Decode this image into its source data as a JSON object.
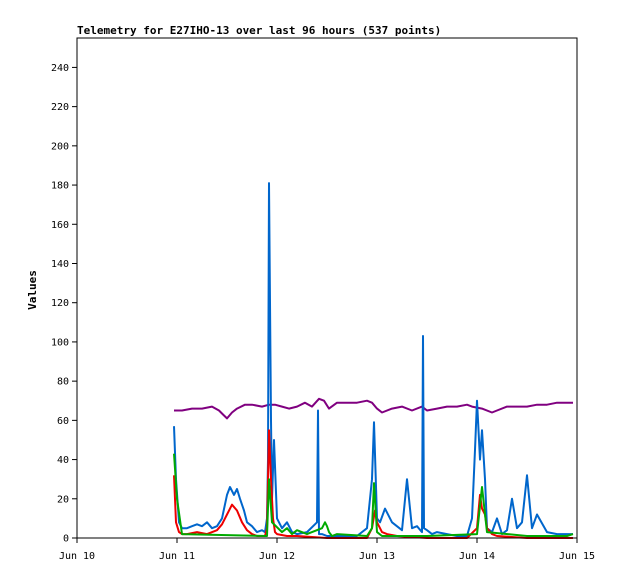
{
  "chart_data": {
    "type": "line",
    "title": "Telemetry for E27IHO-13 over last 96 hours (537 points)",
    "xlabel": "",
    "ylabel": "Values",
    "ylim": [
      0,
      255
    ],
    "xlim": [
      "Jun 10",
      "Jun 15"
    ],
    "grid": false,
    "legend": "none",
    "x_ticks": [
      "Jun 10",
      "Jun 11",
      "Jun 12",
      "Jun 13",
      "Jun 14",
      "Jun 15"
    ],
    "y_ticks": [
      0,
      20,
      40,
      60,
      80,
      100,
      120,
      140,
      160,
      180,
      200,
      220,
      240
    ],
    "series": [
      {
        "color": "#800080",
        "x": [
          10.97,
          11.05,
          11.15,
          11.25,
          11.35,
          11.42,
          11.46,
          11.5,
          11.55,
          11.6,
          11.68,
          11.75,
          11.85,
          11.92,
          11.98,
          12.05,
          12.12,
          12.2,
          12.28,
          12.35,
          12.42,
          12.47,
          12.52,
          12.6,
          12.7,
          12.8,
          12.9,
          12.95,
          13.0,
          13.05,
          13.15,
          13.25,
          13.35,
          13.45,
          13.5,
          13.6,
          13.7,
          13.8,
          13.9,
          13.95,
          14.05,
          14.15,
          14.2,
          14.3,
          14.4,
          14.5,
          14.6,
          14.7,
          14.8,
          14.9,
          14.96
        ],
        "y": [
          65,
          65,
          66,
          66,
          67,
          65,
          63,
          61,
          64,
          66,
          68,
          68,
          67,
          68,
          68,
          67,
          66,
          67,
          69,
          67,
          71,
          70,
          66,
          69,
          69,
          69,
          70,
          69,
          66,
          64,
          66,
          67,
          65,
          67,
          65,
          66,
          67,
          67,
          68,
          67,
          66,
          64,
          65,
          67,
          67,
          67,
          68,
          68,
          69,
          69,
          69
        ]
      },
      {
        "color": "#0066cc",
        "x": [
          10.97,
          10.99,
          11.02,
          11.05,
          11.1,
          11.15,
          11.2,
          11.25,
          11.3,
          11.35,
          11.4,
          11.45,
          11.5,
          11.53,
          11.57,
          11.6,
          11.63,
          11.67,
          11.7,
          11.75,
          11.8,
          11.85,
          11.88,
          11.9,
          11.91,
          11.92,
          11.93,
          11.94,
          11.95,
          11.97,
          12.0,
          12.05,
          12.1,
          12.15,
          12.2,
          12.3,
          12.4,
          12.41,
          12.42,
          12.45,
          12.5,
          12.6,
          12.7,
          12.8,
          12.9,
          12.95,
          12.97,
          13.0,
          13.03,
          13.08,
          13.15,
          13.25,
          13.3,
          13.35,
          13.4,
          13.45,
          13.46,
          13.47,
          13.5,
          13.55,
          13.6,
          13.7,
          13.8,
          13.9,
          13.95,
          13.98,
          14.0,
          14.03,
          14.05,
          14.08,
          14.1,
          14.15,
          14.2,
          14.25,
          14.3,
          14.35,
          14.4,
          14.45,
          14.5,
          14.55,
          14.6,
          14.7,
          14.8,
          14.9,
          14.96
        ],
        "y": [
          57,
          30,
          8,
          5,
          5,
          6,
          7,
          6,
          8,
          5,
          6,
          10,
          22,
          26,
          22,
          25,
          20,
          14,
          8,
          6,
          3,
          4,
          3,
          10,
          40,
          181,
          120,
          60,
          20,
          50,
          10,
          5,
          8,
          3,
          2,
          3,
          8,
          65,
          2,
          2,
          1,
          1,
          1,
          1,
          5,
          30,
          59,
          10,
          8,
          15,
          8,
          4,
          30,
          5,
          6,
          3,
          103,
          5,
          4,
          2,
          3,
          2,
          1,
          1,
          10,
          45,
          70,
          40,
          55,
          30,
          5,
          3,
          10,
          2,
          4,
          20,
          5,
          8,
          32,
          5,
          12,
          3,
          2,
          2,
          2
        ]
      },
      {
        "color": "#ee0000",
        "x": [
          10.97,
          10.99,
          11.02,
          11.05,
          11.1,
          11.2,
          11.3,
          11.4,
          11.45,
          11.5,
          11.55,
          11.6,
          11.65,
          11.7,
          11.75,
          11.8,
          11.85,
          11.88,
          11.9,
          11.92,
          11.94,
          11.96,
          11.98,
          12.0,
          12.1,
          12.2,
          12.5,
          12.9,
          12.95,
          12.98,
          13.0,
          13.05,
          13.1,
          13.2,
          13.5,
          13.9,
          14.0,
          14.03,
          14.05,
          14.08,
          14.1,
          14.15,
          14.2,
          14.5,
          14.96
        ],
        "y": [
          32,
          8,
          3,
          2,
          2,
          3,
          2,
          4,
          7,
          12,
          17,
          14,
          8,
          4,
          2,
          1,
          1,
          1,
          5,
          55,
          30,
          10,
          3,
          2,
          1,
          1,
          0,
          0,
          5,
          14,
          8,
          3,
          2,
          1,
          0,
          0,
          5,
          22,
          15,
          12,
          5,
          2,
          1,
          0,
          0
        ]
      },
      {
        "color": "#00aa00",
        "x": [
          10.97,
          11.0,
          11.05,
          11.9,
          11.92,
          11.95,
          12.05,
          12.1,
          12.15,
          12.2,
          12.3,
          12.35,
          12.45,
          12.48,
          12.5,
          12.52,
          12.55,
          12.6,
          12.9,
          12.95,
          12.97,
          13.0,
          13.05,
          13.5,
          14.0,
          14.05,
          14.1,
          14.5,
          14.9,
          14.96
        ],
        "y": [
          43,
          20,
          2,
          1,
          30,
          8,
          3,
          5,
          2,
          4,
          2,
          3,
          5,
          8,
          6,
          3,
          1,
          2,
          1,
          5,
          28,
          3,
          1,
          1,
          2,
          26,
          3,
          1,
          1,
          2
        ]
      }
    ]
  }
}
